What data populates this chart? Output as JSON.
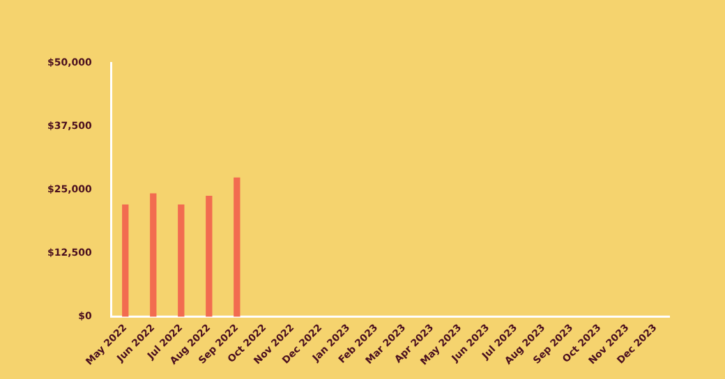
{
  "chart_data": {
    "type": "bar",
    "categories": [
      "May 2022",
      "Jun 2022",
      "Jul 2022",
      "Aug 2022",
      "Sep 2022",
      "Oct 2022",
      "Nov 2022",
      "Dec 2022",
      "Jan 2023",
      "Feb 2023",
      "Mar 2023",
      "Apr 2023",
      "May 2023",
      "Jun 2023",
      "Jul 2023",
      "Aug 2023",
      "Sep 2023",
      "Oct 2023",
      "Nov 2023",
      "Dec 2023"
    ],
    "values": [
      22000,
      24200,
      22000,
      23700,
      27300,
      null,
      null,
      null,
      null,
      null,
      null,
      null,
      null,
      null,
      null,
      null,
      null,
      null,
      null,
      null
    ],
    "color": "#f26b50",
    "ylim": [
      0,
      50000
    ],
    "yticks": [
      {
        "value": 0,
        "label": "$0"
      },
      {
        "value": 12500,
        "label": "$12,500"
      },
      {
        "value": 25000,
        "label": "$25,000"
      },
      {
        "value": 37500,
        "label": "$37,500"
      },
      {
        "value": 50000,
        "label": "$50,000"
      }
    ],
    "grid": false
  }
}
